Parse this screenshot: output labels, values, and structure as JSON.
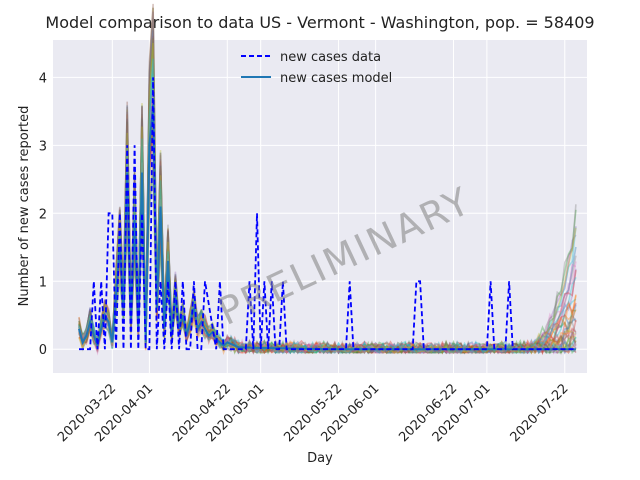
{
  "chart_data": {
    "type": "line",
    "title": "Model comparison to data US - Vermont - Washington, pop. = 58409",
    "xlabel": "Day",
    "ylabel": "Number of new cases reported",
    "watermark": "PRELIMINARY",
    "x_range": [
      "2020-03-06",
      "2020-07-28"
    ],
    "ylim": [
      -0.35,
      4.55
    ],
    "y_ticks": [
      0,
      1,
      2,
      3,
      4
    ],
    "x_ticks": [
      "2020-03-22",
      "2020-04-01",
      "2020-04-22",
      "2020-05-01",
      "2020-05-22",
      "2020-06-01",
      "2020-06-22",
      "2020-07-01",
      "2020-07-22"
    ],
    "grid": true,
    "legend_position": "top-center",
    "legend": [
      "new cases data",
      "new cases model"
    ],
    "colors": {
      "background": "#eaeaf2",
      "data": "#0000ff",
      "model": "#1f77b4",
      "ensemble": [
        "#1f77b4",
        "#ff7f0e",
        "#2ca02c",
        "#d62728",
        "#9467bd",
        "#8c564b",
        "#e377c2",
        "#7f7f7f",
        "#bcbd22",
        "#17becf"
      ]
    },
    "series": [
      {
        "name": "new cases data",
        "style": "dashed",
        "x": [
          "2020-03-13",
          "2020-03-16",
          "2020-03-17",
          "2020-03-18",
          "2020-03-19",
          "2020-03-20",
          "2020-03-21",
          "2020-03-22",
          "2020-03-23",
          "2020-03-24",
          "2020-03-25",
          "2020-03-26",
          "2020-03-27",
          "2020-03-28",
          "2020-03-29",
          "2020-03-30",
          "2020-03-31",
          "2020-04-01",
          "2020-04-02",
          "2020-04-03",
          "2020-04-04",
          "2020-04-05",
          "2020-04-06",
          "2020-04-07",
          "2020-04-08",
          "2020-04-09",
          "2020-04-10",
          "2020-04-11",
          "2020-04-12",
          "2020-04-13",
          "2020-04-14",
          "2020-04-15",
          "2020-04-16",
          "2020-04-19",
          "2020-04-20",
          "2020-04-21",
          "2020-04-27",
          "2020-04-28",
          "2020-04-29",
          "2020-04-30",
          "2020-05-01",
          "2020-05-02",
          "2020-05-03",
          "2020-05-04",
          "2020-05-05",
          "2020-05-06",
          "2020-05-07",
          "2020-05-08",
          "2020-05-09",
          "2020-05-24",
          "2020-05-25",
          "2020-05-26",
          "2020-06-11",
          "2020-06-12",
          "2020-06-13",
          "2020-06-14",
          "2020-07-01",
          "2020-07-02",
          "2020-07-03",
          "2020-07-06",
          "2020-07-07",
          "2020-07-08",
          "2020-07-25"
        ],
        "y": [
          0,
          0,
          1,
          0,
          1,
          0,
          2,
          2,
          0,
          2,
          0,
          3,
          0,
          3,
          0,
          2,
          0,
          0,
          4,
          0,
          1,
          0,
          1,
          0,
          1,
          0,
          1,
          0,
          0,
          1,
          0,
          0,
          1,
          0,
          1,
          0,
          0,
          1,
          0,
          2,
          0,
          1,
          0,
          1,
          0,
          0,
          1,
          0,
          0,
          0,
          1,
          0,
          0,
          1,
          1,
          0,
          0,
          1,
          0,
          0,
          1,
          0,
          0
        ]
      },
      {
        "name": "new cases model",
        "style": "solid",
        "x": [
          "2020-03-13",
          "2020-03-14",
          "2020-03-15",
          "2020-03-16",
          "2020-03-17",
          "2020-03-18",
          "2020-03-19",
          "2020-03-20",
          "2020-03-21",
          "2020-03-22",
          "2020-03-23",
          "2020-03-24",
          "2020-03-25",
          "2020-03-26",
          "2020-03-27",
          "2020-03-28",
          "2020-03-29",
          "2020-03-30",
          "2020-03-31",
          "2020-04-01",
          "2020-04-02",
          "2020-04-03",
          "2020-04-04",
          "2020-04-05",
          "2020-04-06",
          "2020-04-07",
          "2020-04-08",
          "2020-04-09",
          "2020-04-10",
          "2020-04-11",
          "2020-04-12",
          "2020-04-13",
          "2020-04-14",
          "2020-04-15",
          "2020-04-16",
          "2020-04-17",
          "2020-04-18",
          "2020-04-19",
          "2020-04-20",
          "2020-04-21",
          "2020-04-22",
          "2020-04-25",
          "2020-05-01",
          "2020-05-10",
          "2020-05-20",
          "2020-06-01",
          "2020-06-15",
          "2020-07-01",
          "2020-07-15",
          "2020-07-25"
        ],
        "y": [
          0.3,
          0.1,
          0.2,
          0.4,
          0.2,
          0.05,
          0.3,
          0.5,
          0.4,
          0.1,
          0.8,
          1.5,
          0.6,
          2.6,
          0.4,
          1.9,
          0.3,
          2.6,
          0.1,
          3.0,
          3.6,
          0.6,
          2.1,
          0.3,
          1.3,
          0.2,
          0.8,
          0.3,
          0.5,
          0.2,
          0.4,
          0.6,
          0.3,
          0.4,
          0.3,
          0.2,
          0.25,
          0.15,
          0.1,
          0.05,
          0.1,
          0.03,
          0.02,
          0.01,
          0.0,
          0.0,
          0.0,
          0.0,
          0.0,
          0.0
        ]
      }
    ]
  }
}
